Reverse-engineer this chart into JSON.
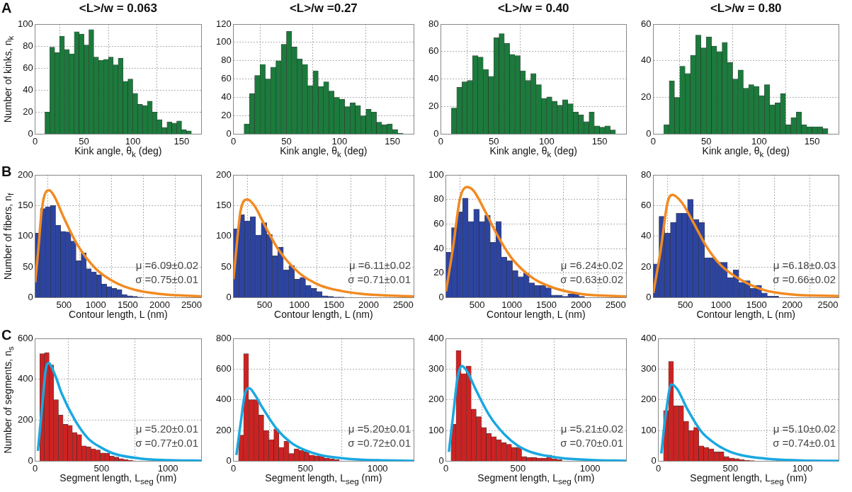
{
  "chart_data": [
    {
      "type": "histogram",
      "title": "<L>/w = 0.063",
      "xlabel": "Kink angle, θ$_{k}$ (deg)",
      "ylabel": "Number of kinks, n$_{k}$",
      "annotations": [
        "A"
      ],
      "color": "#1b7a3c",
      "grid": true,
      "xlim": [
        0,
        170
      ],
      "xticks": [
        0,
        50,
        100,
        150
      ],
      "ylim": [
        0,
        100
      ],
      "yticks": [
        0,
        20,
        40,
        60,
        80,
        100
      ],
      "bins": [
        10,
        15,
        20,
        25,
        30,
        35,
        40,
        45,
        50,
        55,
        60,
        65,
        70,
        75,
        80,
        85,
        90,
        95,
        100,
        105,
        110,
        115,
        120,
        125,
        130,
        135,
        140,
        145,
        150,
        155,
        160
      ],
      "values": [
        20,
        79,
        74,
        89,
        77,
        73,
        93,
        91,
        81,
        95,
        70,
        67,
        68,
        70,
        63,
        69,
        48,
        50,
        37,
        27,
        26,
        30,
        20,
        13,
        6,
        11,
        10,
        12,
        4,
        3
      ]
    },
    {
      "type": "histogram",
      "title": "<L>/w =0.27",
      "xlabel": "Kink angle, θ$_{k}$ (deg)",
      "color": "#1b7a3c",
      "grid": true,
      "xlim": [
        0,
        170
      ],
      "xticks": [
        0,
        50,
        100,
        150
      ],
      "ylim": [
        0,
        120
      ],
      "yticks": [
        0,
        20,
        40,
        60,
        80,
        100,
        120
      ],
      "bins": [
        10,
        15,
        20,
        25,
        30,
        35,
        40,
        45,
        50,
        55,
        60,
        65,
        70,
        75,
        80,
        85,
        90,
        95,
        100,
        105,
        110,
        115,
        120,
        125,
        130,
        135,
        140,
        145,
        150,
        155,
        160
      ],
      "values": [
        11,
        44,
        64,
        76,
        60,
        73,
        80,
        98,
        112,
        95,
        82,
        76,
        53,
        69,
        52,
        57,
        47,
        40,
        38,
        30,
        34,
        31,
        20,
        27,
        24,
        13,
        10,
        11,
        5,
        1
      ]
    },
    {
      "type": "histogram",
      "title": "<L>/w = 0.40",
      "xlabel": "Kink angle, θ$_{k}$ (deg)",
      "color": "#1b7a3c",
      "grid": true,
      "xlim": [
        0,
        175
      ],
      "xticks": [
        0,
        50,
        100,
        150
      ],
      "ylim": [
        0,
        80
      ],
      "yticks": [
        0,
        20,
        40,
        60,
        80
      ],
      "bins": [
        10,
        15,
        20,
        25,
        30,
        35,
        40,
        45,
        50,
        55,
        60,
        65,
        70,
        75,
        80,
        85,
        90,
        95,
        100,
        105,
        110,
        115,
        120,
        125,
        130,
        135,
        140,
        145,
        150,
        155,
        160,
        165
      ],
      "values": [
        19,
        34,
        38,
        39,
        57,
        56,
        47,
        42,
        70,
        73,
        66,
        58,
        57,
        46,
        39,
        44,
        36,
        26,
        27,
        24,
        21,
        25,
        22,
        16,
        14,
        9,
        16,
        6,
        5,
        6,
        3
      ]
    },
    {
      "type": "histogram",
      "title": "<L>/w = 0.80",
      "xlabel": "Kink angle, θ$_{k}$ (deg)",
      "color": "#1b7a3c",
      "grid": true,
      "xlim": [
        0,
        175
      ],
      "xticks": [
        0,
        50,
        100,
        150
      ],
      "ylim": [
        0,
        60
      ],
      "yticks": [
        0,
        20,
        40,
        60
      ],
      "bins": [
        10,
        15,
        20,
        25,
        30,
        35,
        40,
        45,
        50,
        55,
        60,
        65,
        70,
        75,
        80,
        85,
        90,
        95,
        100,
        105,
        110,
        115,
        120,
        125,
        130,
        135,
        140,
        145,
        150,
        155,
        160,
        165
      ],
      "values": [
        5,
        29,
        20,
        37,
        33,
        43,
        54,
        47,
        53,
        48,
        45,
        50,
        39,
        30,
        35,
        25,
        27,
        26,
        21,
        27,
        16,
        17,
        22,
        5,
        9,
        12,
        5,
        4,
        4,
        4,
        3
      ]
    },
    {
      "type": "histogram",
      "xlabel": "Contour length, L (nm)",
      "ylabel": "Number of fibers, n$_{f}$",
      "annotations": [
        "B",
        "μ =6.09±0.02",
        "σ =0.75±0.01"
      ],
      "color": "#2c44a0",
      "grid": true,
      "xlim": [
        50,
        2650
      ],
      "xticks": [
        500,
        1000,
        1500,
        2000,
        2500
      ],
      "ylim": [
        0,
        200
      ],
      "yticks": [
        0,
        50,
        100,
        150,
        200
      ],
      "bins": [
        50,
        130,
        210,
        290,
        370,
        450,
        530,
        610,
        690,
        770,
        850,
        930,
        1010,
        1090,
        1170,
        1250,
        1330,
        1410,
        1490,
        1570,
        1650,
        1730
      ],
      "values": [
        105,
        145,
        148,
        150,
        118,
        108,
        107,
        92,
        60,
        73,
        47,
        42,
        37,
        22,
        18,
        15,
        13,
        5,
        3,
        2,
        1
      ],
      "series": [
        {
          "type": "line",
          "color": "#f28a22",
          "x": [
            50,
            100,
            150,
            200,
            270,
            350,
            500,
            700,
            1000,
            1300,
            1600,
            2000,
            2650
          ],
          "values": [
            25,
            80,
            140,
            168,
            175,
            165,
            130,
            88,
            47,
            25,
            13,
            6,
            2
          ]
        }
      ]
    },
    {
      "type": "histogram",
      "xlabel": "Contour length, L (nm)",
      "annotations": [
        "μ =6.11±0.02",
        "σ =0.71±0.01"
      ],
      "color": "#2c44a0",
      "grid": true,
      "xlim": [
        50,
        2650
      ],
      "xticks": [
        500,
        1000,
        1500,
        2000,
        2500
      ],
      "ylim": [
        0,
        200
      ],
      "yticks": [
        0,
        50,
        100,
        150,
        200
      ],
      "bins": [
        50,
        130,
        210,
        290,
        370,
        450,
        530,
        610,
        690,
        770,
        850,
        930,
        1010,
        1090,
        1170,
        1250,
        1330,
        1410,
        1490,
        1570,
        1650
      ],
      "values": [
        112,
        135,
        125,
        132,
        102,
        122,
        103,
        68,
        82,
        45,
        52,
        30,
        33,
        20,
        15,
        10,
        3,
        2,
        1,
        1
      ],
      "series": [
        {
          "type": "line",
          "color": "#f28a22",
          "x": [
            50,
            100,
            150,
            250,
            350,
            500,
            700,
            1000,
            1300,
            1600,
            2000,
            2650
          ],
          "values": [
            30,
            90,
            140,
            160,
            150,
            118,
            78,
            40,
            20,
            11,
            5,
            2
          ]
        }
      ]
    },
    {
      "type": "histogram",
      "xlabel": "Contour length, L (nm)",
      "annotations": [
        "μ =6.24±0.02",
        "σ =0.63±0.02"
      ],
      "color": "#2c44a0",
      "grid": true,
      "xlim": [
        50,
        2650
      ],
      "xticks": [
        500,
        1000,
        1500,
        2000,
        2500
      ],
      "ylim": [
        0,
        100
      ],
      "yticks": [
        0,
        20,
        40,
        60,
        80,
        100
      ],
      "bins": [
        50,
        130,
        210,
        290,
        370,
        450,
        530,
        610,
        690,
        770,
        850,
        930,
        1010,
        1090,
        1170,
        1250,
        1330,
        1410,
        1490,
        1570,
        1650,
        1730,
        1810,
        1890,
        1970,
        2050
      ],
      "values": [
        37,
        57,
        70,
        81,
        62,
        72,
        62,
        67,
        45,
        62,
        33,
        30,
        22,
        17,
        20,
        12,
        10,
        10,
        8,
        2,
        2,
        1,
        3,
        3,
        1
      ],
      "series": [
        {
          "type": "line",
          "color": "#f28a22",
          "x": [
            50,
            150,
            250,
            350,
            450,
            600,
            800,
            1000,
            1300,
            1600,
            2000,
            2650
          ],
          "values": [
            5,
            40,
            80,
            90,
            87,
            72,
            50,
            32,
            16,
            8,
            3,
            1
          ]
        }
      ]
    },
    {
      "type": "histogram",
      "xlabel": "Contour length, L (nm)",
      "annotations": [
        "μ =6.18±0.03",
        "σ =0.66±0.02"
      ],
      "color": "#2c44a0",
      "grid": true,
      "xlim": [
        50,
        2650
      ],
      "xticks": [
        500,
        1000,
        1500,
        2000,
        2500
      ],
      "ylim": [
        0,
        80
      ],
      "yticks": [
        0,
        20,
        40,
        60,
        80
      ],
      "bins": [
        50,
        130,
        210,
        290,
        370,
        450,
        530,
        610,
        690,
        770,
        850,
        930,
        1010,
        1090,
        1170,
        1250,
        1330,
        1410,
        1490,
        1570,
        1650,
        1730,
        1810
      ],
      "values": [
        22,
        53,
        42,
        49,
        55,
        55,
        64,
        51,
        49,
        26,
        26,
        23,
        23,
        13,
        18,
        10,
        11,
        6,
        8,
        3,
        1,
        1
      ],
      "series": [
        {
          "type": "line",
          "color": "#f28a22",
          "x": [
            50,
            150,
            250,
            320,
            450,
            600,
            800,
            1000,
            1300,
            1600,
            2000,
            2650
          ],
          "values": [
            3,
            30,
            62,
            67,
            62,
            50,
            33,
            21,
            11,
            5,
            2,
            1
          ]
        }
      ]
    },
    {
      "type": "histogram",
      "xlabel": "Segment length, L$_{seg}$ (nm)",
      "ylabel": "Number of segments, n$_{s}$",
      "annotations": [
        "C",
        "μ =5.20±0.01",
        "σ =0.77±0.01"
      ],
      "color": "#cc2222",
      "grid": true,
      "xlim": [
        0,
        1250
      ],
      "xticks": [
        0,
        500,
        1000
      ],
      "ylim": [
        0,
        600
      ],
      "yticks": [
        0,
        200,
        400,
        600
      ],
      "bins": [
        35,
        70,
        105,
        140,
        175,
        210,
        245,
        280,
        315,
        350,
        385,
        420,
        455,
        490,
        525,
        560,
        595,
        630,
        665,
        700,
        735
      ],
      "values": [
        525,
        530,
        470,
        300,
        225,
        180,
        175,
        140,
        130,
        75,
        70,
        60,
        55,
        40,
        38,
        25,
        20,
        12,
        8,
        5
      ],
      "series": [
        {
          "type": "line",
          "color": "#1aa8e0",
          "x": [
            20,
            50,
            80,
            100,
            150,
            200,
            300,
            400,
            500,
            600,
            800,
            1000,
            1250
          ],
          "values": [
            50,
            250,
            450,
            480,
            420,
            330,
            200,
            110,
            65,
            35,
            12,
            5,
            2
          ]
        }
      ]
    },
    {
      "type": "histogram",
      "xlabel": "Segment length, L$_{seg}$ (nm)",
      "annotations": [
        "μ =5.20±0.01",
        "σ =0.72±0.01"
      ],
      "color": "#cc2222",
      "grid": true,
      "xlim": [
        0,
        1250
      ],
      "xticks": [
        0,
        500,
        1000
      ],
      "ylim": [
        0,
        800
      ],
      "yticks": [
        0,
        200,
        400,
        600,
        800
      ],
      "bins": [
        35,
        70,
        105,
        140,
        175,
        210,
        245,
        280,
        315,
        350,
        385,
        420,
        455,
        490,
        525,
        560,
        595,
        630,
        665,
        700,
        735
      ],
      "values": [
        170,
        700,
        400,
        400,
        300,
        200,
        140,
        210,
        90,
        130,
        50,
        80,
        70,
        60,
        40,
        35,
        40,
        20,
        15,
        10
      ],
      "series": [
        {
          "type": "line",
          "color": "#1aa8e0",
          "x": [
            20,
            50,
            80,
            110,
            150,
            200,
            300,
            400,
            500,
            600,
            800,
            1000,
            1250
          ],
          "values": [
            40,
            250,
            440,
            475,
            430,
            350,
            210,
            120,
            70,
            40,
            15,
            6,
            2
          ]
        }
      ]
    },
    {
      "type": "histogram",
      "xlabel": "Segment length, L$_{seg}$ (nm)",
      "annotations": [
        "μ =5.21±0.02",
        "σ =0.70±0.01"
      ],
      "color": "#cc2222",
      "grid": true,
      "xlim": [
        0,
        1250
      ],
      "xticks": [
        0,
        500,
        1000
      ],
      "ylim": [
        0,
        400
      ],
      "yticks": [
        0,
        100,
        200,
        300,
        400
      ],
      "bins": [
        35,
        70,
        105,
        140,
        175,
        210,
        245,
        280,
        315,
        350,
        385,
        420,
        455,
        490,
        525,
        560,
        595,
        630,
        665,
        700,
        735,
        770,
        805
      ],
      "values": [
        120,
        360,
        285,
        310,
        170,
        145,
        110,
        90,
        80,
        70,
        60,
        55,
        45,
        45,
        15,
        12,
        12,
        10,
        10,
        20,
        8,
        5
      ],
      "series": [
        {
          "type": "line",
          "color": "#1aa8e0",
          "x": [
            20,
            50,
            80,
            110,
            150,
            200,
            300,
            400,
            500,
            600,
            800,
            1000,
            1250
          ],
          "values": [
            30,
            150,
            270,
            310,
            290,
            240,
            150,
            90,
            50,
            28,
            10,
            4,
            1
          ]
        }
      ]
    },
    {
      "type": "histogram",
      "xlabel": "Segment length, L$_{seg}$ (nm)",
      "annotations": [
        "μ =5.10±0.02",
        "σ =0.74±0.01"
      ],
      "color": "#cc2222",
      "grid": true,
      "xlim": [
        0,
        1250
      ],
      "xticks": [
        0,
        500,
        1000
      ],
      "ylim": [
        0,
        400
      ],
      "yticks": [
        0,
        100,
        200,
        300,
        400
      ],
      "bins": [
        35,
        70,
        105,
        140,
        175,
        210,
        245,
        280,
        315,
        350,
        385,
        420,
        455,
        490,
        525,
        560,
        595,
        630,
        665
      ],
      "values": [
        165,
        325,
        180,
        180,
        130,
        100,
        110,
        50,
        45,
        40,
        30,
        30,
        15,
        10,
        8,
        5,
        3,
        2
      ],
      "series": [
        {
          "type": "line",
          "color": "#1aa8e0",
          "x": [
            20,
            50,
            90,
            130,
            200,
            300,
            400,
            500,
            600,
            800,
            1000,
            1250
          ],
          "values": [
            25,
            150,
            250,
            235,
            170,
            95,
            55,
            30,
            17,
            6,
            2,
            1
          ]
        }
      ]
    }
  ]
}
